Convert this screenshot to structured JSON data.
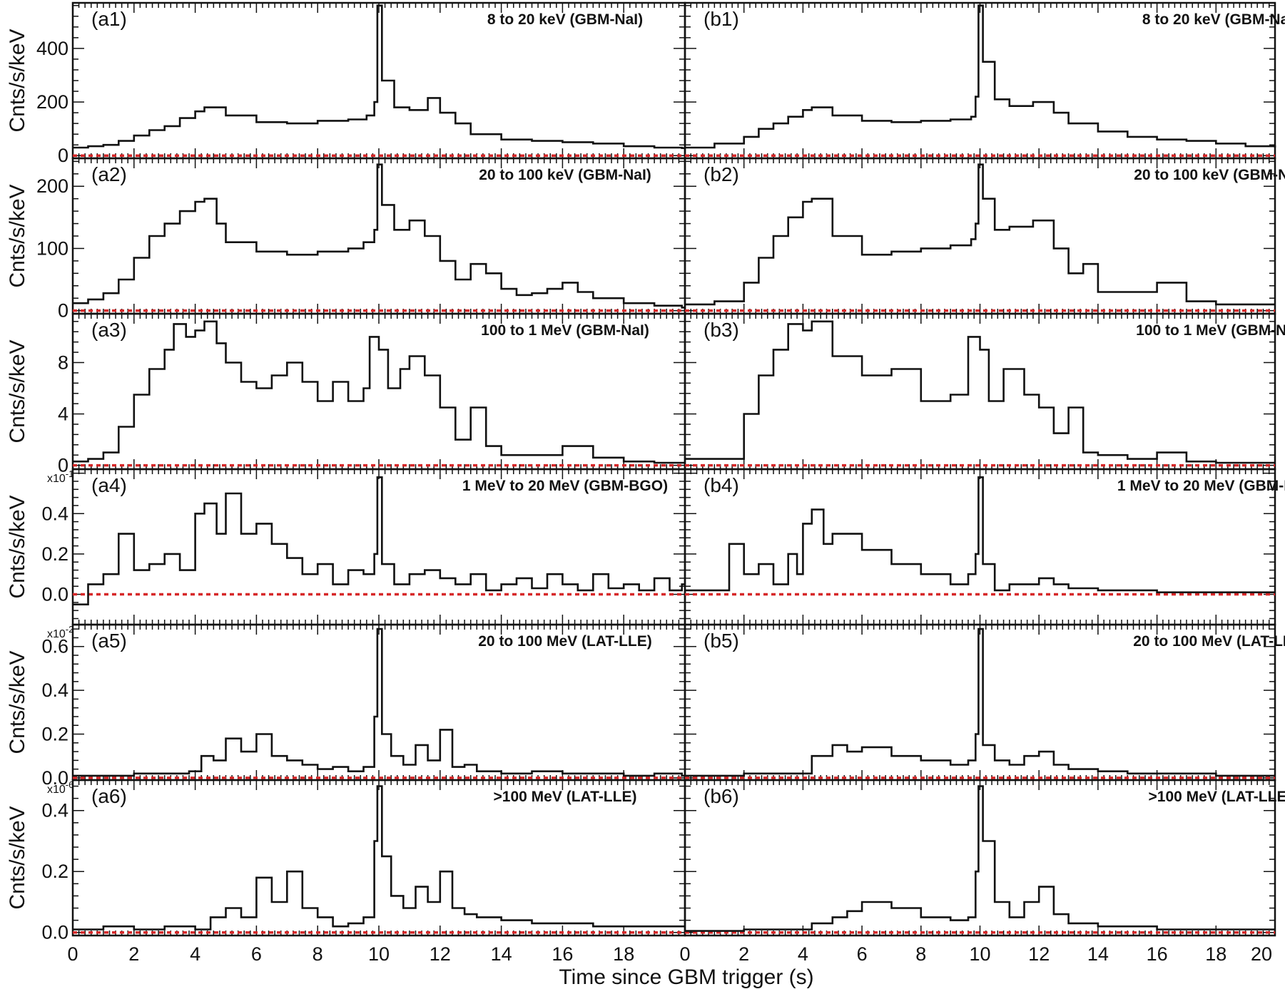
{
  "chart_data": {
    "type": "line",
    "xlabel": "Time since GBM trigger (s)",
    "xlim": [
      0,
      20
    ],
    "xticks": [
      0,
      2,
      4,
      6,
      8,
      10,
      12,
      14,
      16,
      18,
      20
    ],
    "xtick_labels_left": [
      "0",
      "2",
      "4",
      "6",
      "8",
      "10",
      "12",
      "14",
      "16",
      "18"
    ],
    "xtick_labels_right": [
      "0",
      "2",
      "4",
      "6",
      "8",
      "10",
      "12",
      "14",
      "16",
      "18",
      "20"
    ],
    "ylabel": "Cnts/s/keV",
    "background_level": 0,
    "background_color": "#d62728",
    "line_color": "#111111",
    "rows": [
      {
        "energy": "8 to 20 keV (GBM-NaI)",
        "ylim": [
          -10,
          570
        ],
        "yticks": [
          0,
          200,
          400
        ],
        "ytick_labels": [
          "0",
          "200",
          "400"
        ],
        "multiplier": "",
        "left": {
          "label": "(a1)",
          "t": [
            0,
            0.5,
            1,
            1.5,
            2,
            2.5,
            3,
            3.5,
            4,
            4.3,
            5,
            6,
            7,
            8,
            9,
            9.6,
            9.85,
            9.95,
            10.1,
            10.5,
            11,
            11.6,
            12,
            12.5,
            13,
            14,
            15,
            16,
            17,
            18,
            19,
            19.9
          ],
          "v": [
            30,
            35,
            40,
            55,
            75,
            95,
            110,
            140,
            165,
            180,
            150,
            125,
            120,
            130,
            135,
            150,
            200,
            560,
            280,
            180,
            170,
            215,
            160,
            120,
            80,
            60,
            55,
            50,
            45,
            35,
            30,
            28
          ]
        },
        "right": {
          "label": "(b1)",
          "t": [
            0,
            1,
            2,
            2.5,
            3,
            3.5,
            4,
            4.3,
            5,
            6,
            7,
            8,
            9,
            9.7,
            9.85,
            9.95,
            10.1,
            10.5,
            11,
            11.8,
            12.5,
            13,
            14,
            15,
            16,
            17,
            18,
            19,
            20
          ],
          "v": [
            30,
            45,
            70,
            100,
            120,
            145,
            170,
            180,
            150,
            130,
            125,
            130,
            135,
            145,
            220,
            560,
            350,
            210,
            185,
            200,
            160,
            120,
            90,
            70,
            60,
            55,
            45,
            35,
            30
          ]
        }
      },
      {
        "energy": "20 to 100 keV (GBM-NaI)",
        "ylim": [
          -5,
          245
        ],
        "yticks": [
          0,
          100,
          200
        ],
        "ytick_labels": [
          "0",
          "100",
          "200"
        ],
        "multiplier": "",
        "left": {
          "label": "(a2)",
          "t": [
            0,
            0.5,
            1,
            1.5,
            2,
            2.5,
            3,
            3.5,
            4,
            4.3,
            4.7,
            5,
            6,
            7,
            8,
            9,
            9.5,
            9.85,
            9.95,
            10.1,
            10.5,
            11,
            11.5,
            12,
            12.5,
            13,
            13.5,
            14,
            14.5,
            15,
            15.5,
            16,
            16.5,
            17,
            18,
            19,
            19.9
          ],
          "v": [
            12,
            18,
            28,
            50,
            85,
            120,
            140,
            160,
            175,
            180,
            140,
            110,
            95,
            90,
            95,
            100,
            110,
            130,
            235,
            170,
            130,
            145,
            120,
            80,
            50,
            75,
            60,
            35,
            25,
            28,
            35,
            45,
            30,
            20,
            12,
            8,
            5
          ]
        },
        "right": {
          "label": "(b2)",
          "t": [
            0,
            1,
            2,
            2.5,
            3,
            3.5,
            4,
            4.3,
            5,
            6,
            7,
            8,
            9,
            9.7,
            9.85,
            9.95,
            10.1,
            10.5,
            11,
            11.8,
            12.5,
            13,
            13.5,
            14,
            15,
            16,
            17,
            18,
            19,
            20
          ],
          "v": [
            10,
            15,
            45,
            85,
            120,
            150,
            175,
            180,
            120,
            90,
            95,
            100,
            105,
            115,
            140,
            235,
            180,
            130,
            135,
            145,
            100,
            60,
            75,
            30,
            30,
            45,
            15,
            10,
            10,
            10
          ]
        }
      },
      {
        "energy": "100 to 1 MeV (GBM-NaI)",
        "ylim": [
          -0.3,
          11.8
        ],
        "yticks": [
          0,
          4,
          8
        ],
        "ytick_labels": [
          "0",
          "4",
          "8"
        ],
        "multiplier": "",
        "left": {
          "label": "(a3)",
          "t": [
            0,
            0.5,
            1,
            1.5,
            2,
            2.5,
            3,
            3.3,
            3.7,
            4,
            4.3,
            4.7,
            5,
            5.5,
            6,
            6.5,
            7,
            7.5,
            8,
            8.5,
            9,
            9.5,
            9.7,
            10,
            10.3,
            10.7,
            11,
            11.5,
            12,
            12.5,
            13,
            13.5,
            14,
            15,
            16,
            17,
            18,
            19,
            19.9
          ],
          "v": [
            0.3,
            0.5,
            1,
            3,
            5.5,
            7.5,
            9,
            11,
            10,
            10.5,
            11.2,
            9.5,
            8,
            6.5,
            6,
            7,
            8,
            6.5,
            5,
            6.5,
            5,
            6,
            10,
            9,
            6,
            7.5,
            8.5,
            7,
            4.5,
            2,
            4.5,
            1.5,
            0.8,
            0.8,
            1.5,
            0.6,
            0.3,
            0.2,
            0.2
          ]
        },
        "right": {
          "label": "(b3)",
          "t": [
            0,
            1,
            2,
            2.5,
            3,
            3.5,
            4,
            4.3,
            5,
            6,
            7,
            8,
            9,
            9.6,
            10,
            10.3,
            10.8,
            11.5,
            12,
            12.5,
            13,
            13.5,
            14,
            15,
            16,
            17,
            18,
            19,
            20
          ],
          "v": [
            0.5,
            0.5,
            4,
            7,
            9,
            11,
            10.5,
            11.2,
            8.5,
            7,
            7.5,
            5,
            5.5,
            10,
            9,
            5,
            7.5,
            5.5,
            4.5,
            2.5,
            4.5,
            1,
            0.8,
            0.5,
            1,
            0.3,
            0.2,
            0.2,
            0.2
          ]
        }
      },
      {
        "energy": "1 MeV to 20 MeV (GBM-BGO)",
        "ylim": [
          -0.15,
          0.62
        ],
        "yticks": [
          0,
          0.2,
          0.4
        ],
        "ytick_labels": [
          "0.0",
          "0.2",
          "0.4"
        ],
        "multiplier": "x10",
        "multiplier_exp": "-1",
        "left": {
          "label": "(a4)",
          "t": [
            0,
            0.5,
            1,
            1.5,
            2,
            2.5,
            3,
            3.5,
            4,
            4.3,
            4.7,
            5,
            5.5,
            6,
            6.5,
            7,
            7.5,
            8,
            8.5,
            9,
            9.5,
            9.85,
            9.95,
            10.1,
            10.5,
            11,
            11.5,
            12,
            12.5,
            13,
            13.5,
            14,
            14.5,
            15,
            15.5,
            16,
            16.5,
            17,
            17.5,
            18,
            18.5,
            19,
            19.5,
            19.9
          ],
          "v": [
            -0.05,
            0.05,
            0.1,
            0.3,
            0.12,
            0.15,
            0.2,
            0.12,
            0.4,
            0.45,
            0.3,
            0.5,
            0.3,
            0.35,
            0.25,
            0.18,
            0.1,
            0.15,
            0.05,
            0.12,
            0.1,
            0.2,
            0.58,
            0.15,
            0.05,
            0.1,
            0.12,
            0.08,
            0.05,
            0.1,
            0.02,
            0.05,
            0.08,
            0.03,
            0.1,
            0.05,
            0.02,
            0.1,
            0.03,
            0.05,
            0.02,
            0.08,
            0.02,
            0.05
          ]
        },
        "right": {
          "label": "(b4)",
          "t": [
            0,
            1,
            1.5,
            2,
            2.5,
            3,
            3.5,
            3.8,
            4,
            4.3,
            4.7,
            5,
            6,
            7,
            8,
            9,
            9.6,
            9.85,
            9.95,
            10.1,
            10.5,
            11,
            11.5,
            12,
            12.5,
            13,
            14,
            15,
            16,
            17,
            18,
            19,
            20
          ],
          "v": [
            0.02,
            0.02,
            0.25,
            0.1,
            0.15,
            0.05,
            0.2,
            0.1,
            0.35,
            0.42,
            0.25,
            0.3,
            0.22,
            0.15,
            0.1,
            0.05,
            0.1,
            0.2,
            0.58,
            0.15,
            0.02,
            0.05,
            0.05,
            0.08,
            0.05,
            0.03,
            0.02,
            0.02,
            0.01,
            0.01,
            0.01,
            0.01,
            0.01
          ]
        }
      },
      {
        "energy": "20 to 100 MeV (LAT-LLE)",
        "ylim": [
          -0.01,
          0.7
        ],
        "yticks": [
          0,
          0.2,
          0.4,
          0.6
        ],
        "ytick_labels": [
          "0.0",
          "0.2",
          "0.4",
          "0.6"
        ],
        "multiplier": "x10",
        "multiplier_exp": "-2",
        "left": {
          "label": "(a5)",
          "t": [
            0,
            1,
            2,
            3,
            3.8,
            4.2,
            4.6,
            5,
            5.5,
            6,
            6.5,
            7,
            7.5,
            8,
            8.5,
            9,
            9.5,
            9.85,
            9.95,
            10.1,
            10.4,
            10.8,
            11.2,
            11.6,
            12,
            12.4,
            12.8,
            13.2,
            14,
            15,
            16,
            17,
            18,
            19,
            19.9
          ],
          "v": [
            0.01,
            0.01,
            0.02,
            0.02,
            0.03,
            0.1,
            0.08,
            0.18,
            0.12,
            0.2,
            0.1,
            0.08,
            0.06,
            0.04,
            0.05,
            0.03,
            0.05,
            0.28,
            0.68,
            0.2,
            0.1,
            0.06,
            0.15,
            0.08,
            0.22,
            0.05,
            0.06,
            0.03,
            0.02,
            0.03,
            0.02,
            0.02,
            0.01,
            0.02,
            0.01
          ]
        },
        "right": {
          "label": "(b5)",
          "t": [
            0,
            1,
            2,
            3,
            4,
            4.3,
            5,
            5.5,
            6,
            7,
            8,
            9,
            9.6,
            9.85,
            9.95,
            10.1,
            10.5,
            11,
            11.5,
            12,
            12.5,
            13,
            14,
            15,
            16,
            17,
            18,
            19,
            20
          ],
          "v": [
            0.01,
            0.01,
            0.02,
            0.02,
            0.02,
            0.1,
            0.15,
            0.12,
            0.14,
            0.1,
            0.08,
            0.06,
            0.08,
            0.2,
            0.68,
            0.15,
            0.08,
            0.06,
            0.1,
            0.12,
            0.06,
            0.04,
            0.03,
            0.02,
            0.02,
            0.02,
            0.01,
            0.01,
            0.01
          ]
        }
      },
      {
        "energy": ">100 MeV (LAT-LLE)",
        "ylim": [
          -0.01,
          0.5
        ],
        "yticks": [
          0,
          0.2,
          0.4
        ],
        "ytick_labels": [
          "0.0",
          "0.2",
          "0.4"
        ],
        "multiplier": "x10",
        "multiplier_exp": "-6",
        "left": {
          "label": "(a6)",
          "t": [
            0,
            1,
            2,
            3,
            4,
            4.5,
            5,
            5.5,
            6,
            6.5,
            7,
            7.5,
            8,
            8.5,
            9,
            9.5,
            9.85,
            9.95,
            10.1,
            10.4,
            10.8,
            11.2,
            11.6,
            12,
            12.4,
            12.8,
            13.2,
            14,
            15,
            16,
            17,
            18,
            19,
            19.9
          ],
          "v": [
            0.01,
            0.02,
            0.01,
            0.02,
            0.01,
            0.05,
            0.08,
            0.05,
            0.18,
            0.1,
            0.2,
            0.08,
            0.05,
            0.02,
            0.03,
            0.05,
            0.3,
            0.48,
            0.25,
            0.12,
            0.08,
            0.15,
            0.1,
            0.2,
            0.08,
            0.06,
            0.05,
            0.04,
            0.03,
            0.03,
            0.02,
            0.02,
            0.02,
            0.02
          ]
        },
        "right": {
          "label": "(b6)",
          "t": [
            0,
            1,
            2,
            3,
            4,
            4.3,
            5,
            5.5,
            6,
            7,
            8,
            9,
            9.6,
            9.85,
            9.95,
            10.1,
            10.5,
            11,
            11.5,
            12,
            12.5,
            13,
            14,
            15,
            16,
            17,
            18,
            19,
            20
          ],
          "v": [
            0.005,
            0.005,
            0.01,
            0.01,
            0.01,
            0.03,
            0.05,
            0.07,
            0.1,
            0.08,
            0.05,
            0.04,
            0.05,
            0.2,
            0.48,
            0.3,
            0.1,
            0.05,
            0.1,
            0.15,
            0.06,
            0.03,
            0.02,
            0.02,
            0.01,
            0.01,
            0.01,
            0.01,
            0.01
          ]
        }
      }
    ]
  }
}
